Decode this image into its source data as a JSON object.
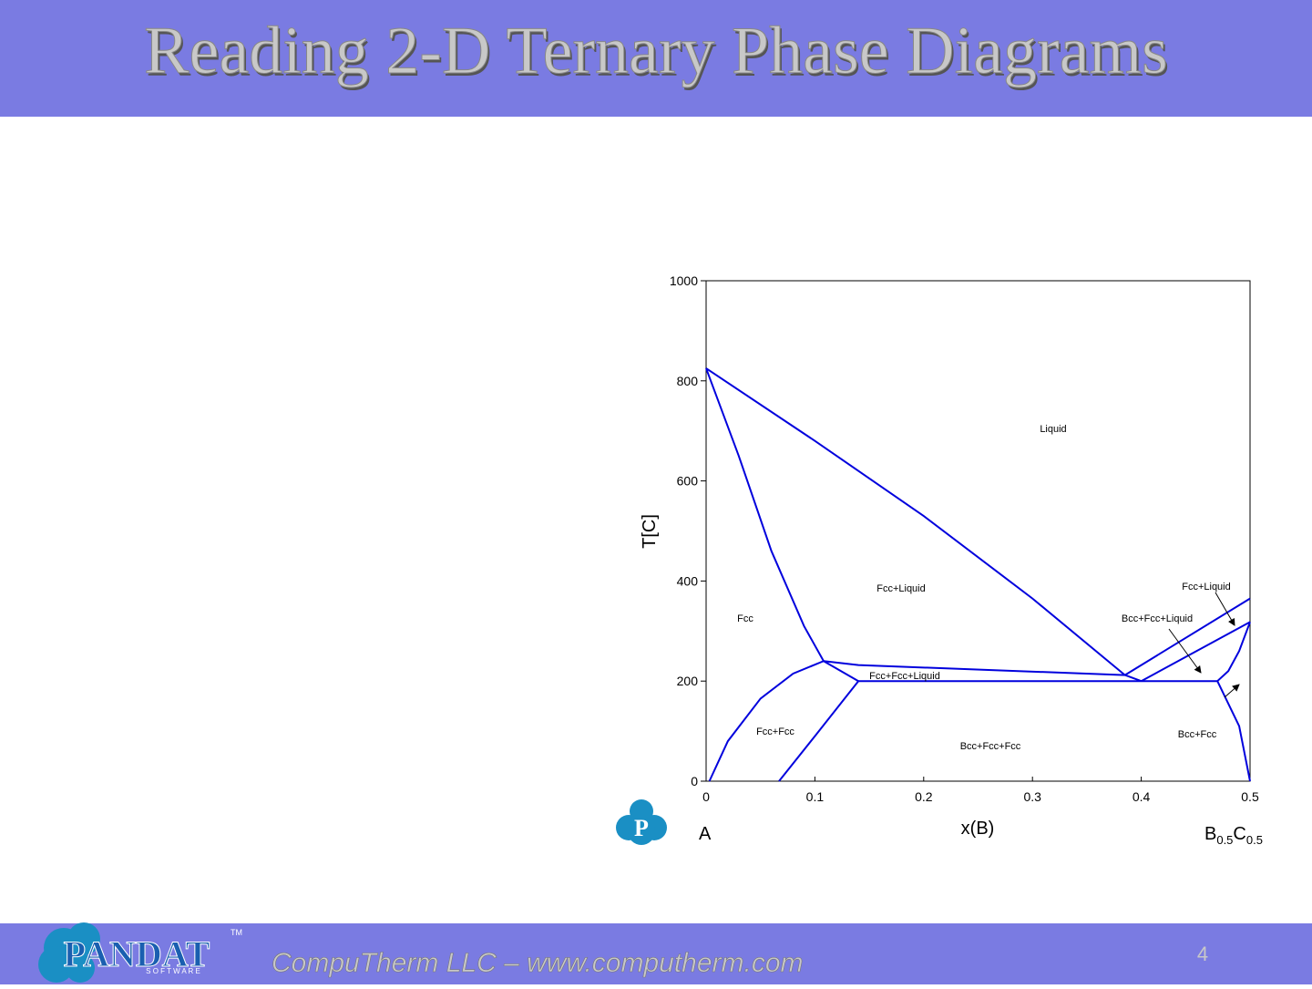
{
  "header": {
    "title": "Reading 2-D Ternary Phase Diagrams"
  },
  "chart_data": {
    "type": "line",
    "xlabel": "x(B)",
    "ylabel": "T[C]",
    "xlim": [
      0,
      0.5
    ],
    "ylim": [
      0,
      1000
    ],
    "xticks": [
      0,
      0.1,
      0.2,
      0.3,
      0.4,
      0.5
    ],
    "yticks": [
      0,
      200,
      400,
      600,
      800,
      1000
    ],
    "color": "#0000dd",
    "series": [
      {
        "x": [
          0,
          0.1,
          0.2,
          0.3,
          0.385
        ],
        "values": [
          825,
          680,
          530,
          365,
          212
        ]
      },
      {
        "x": [
          0,
          0.03,
          0.06,
          0.09,
          0.108
        ],
        "values": [
          825,
          650,
          460,
          310,
          240
        ]
      },
      {
        "x": [
          0.003,
          0.02,
          0.05,
          0.08,
          0.108
        ],
        "values": [
          0,
          80,
          165,
          215,
          240
        ]
      },
      {
        "x": [
          0.108,
          0.14,
          0.385
        ],
        "values": [
          240,
          232,
          212
        ]
      },
      {
        "x": [
          0.108,
          0.14
        ],
        "values": [
          240,
          200
        ]
      },
      {
        "x": [
          0.067,
          0.1,
          0.14
        ],
        "values": [
          0,
          90,
          200
        ]
      },
      {
        "x": [
          0.14,
          0.47
        ],
        "values": [
          200,
          200
        ]
      },
      {
        "x": [
          0.385,
          0.4
        ],
        "values": [
          212,
          200
        ]
      },
      {
        "x": [
          0.385,
          0.5
        ],
        "values": [
          212,
          365
        ]
      },
      {
        "x": [
          0.4,
          0.5
        ],
        "values": [
          200,
          318
        ]
      },
      {
        "x": [
          0.47,
          0.48,
          0.49,
          0.5
        ],
        "values": [
          200,
          220,
          260,
          318
        ]
      },
      {
        "x": [
          0.47,
          0.49,
          0.5
        ],
        "values": [
          200,
          110,
          0
        ]
      }
    ],
    "annotations": [
      "Liquid",
      "Fcc+Liquid",
      "Fcc+Liquid",
      "Fcc",
      "Bcc+Fcc+Liquid",
      "Fcc+Fcc+Liquid",
      "Fcc+Fcc",
      "Bcc+Fcc+Fcc",
      "Bcc+Fcc"
    ],
    "left_corner": "A",
    "right_corner": [
      "B",
      "0.5",
      "C",
      "0.5"
    ]
  },
  "footer": {
    "logo": "PANDAT",
    "logo_sub": "S O F T W A R E",
    "trademark": "TM",
    "text": "CompuTherm LLC – www.computherm.com",
    "page": "4"
  }
}
